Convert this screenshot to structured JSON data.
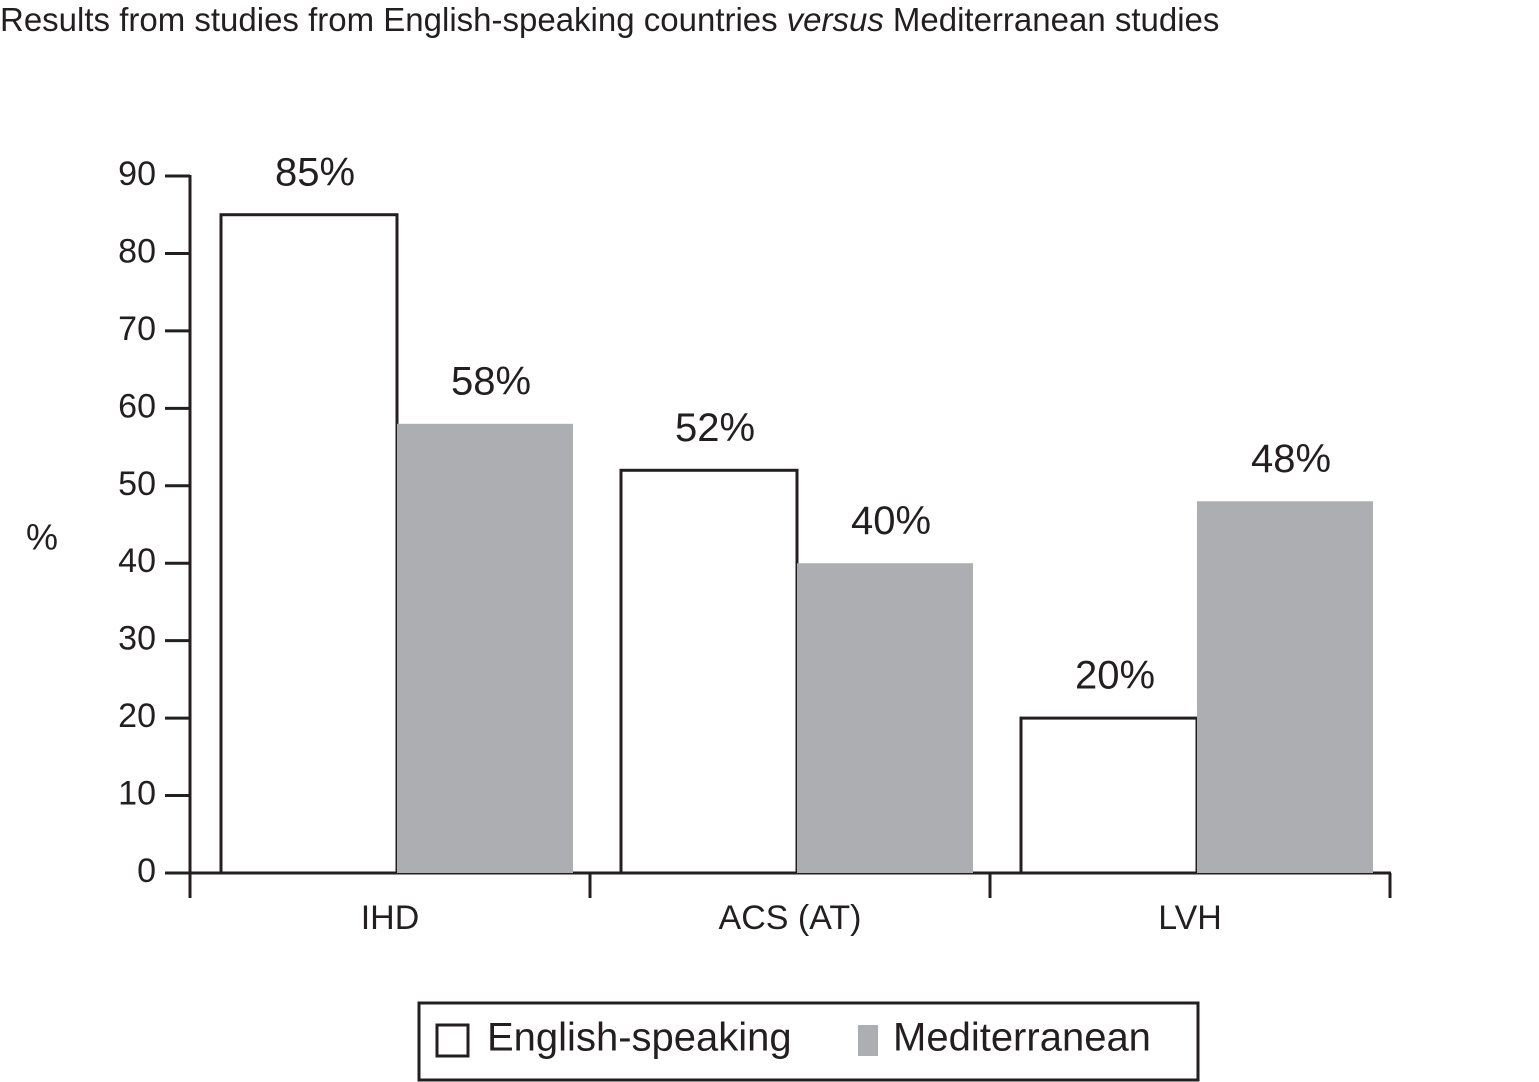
{
  "chart_data": {
    "type": "bar",
    "title": [
      "Results from studies from English-speaking countries",
      "versus",
      "Mediterranean studies"
    ],
    "y_label": "%",
    "categories": [
      "IHD",
      "ACS (AT)",
      "LVH"
    ],
    "series": [
      {
        "name": "English-speaking",
        "color": "#ffffff",
        "values": [
          85,
          52,
          20
        ],
        "value_labels": [
          "85%",
          "52%",
          "20%"
        ]
      },
      {
        "name": "Mediterranean",
        "color": "#adaeb2",
        "values": [
          58,
          40,
          48
        ],
        "value_labels": [
          "58%",
          "40%",
          "48%"
        ]
      }
    ],
    "ylim": [
      0,
      90
    ],
    "yticks": [
      0,
      10,
      20,
      30,
      40,
      50,
      60,
      70,
      80,
      90
    ],
    "grid": false,
    "legend": "bottom"
  }
}
